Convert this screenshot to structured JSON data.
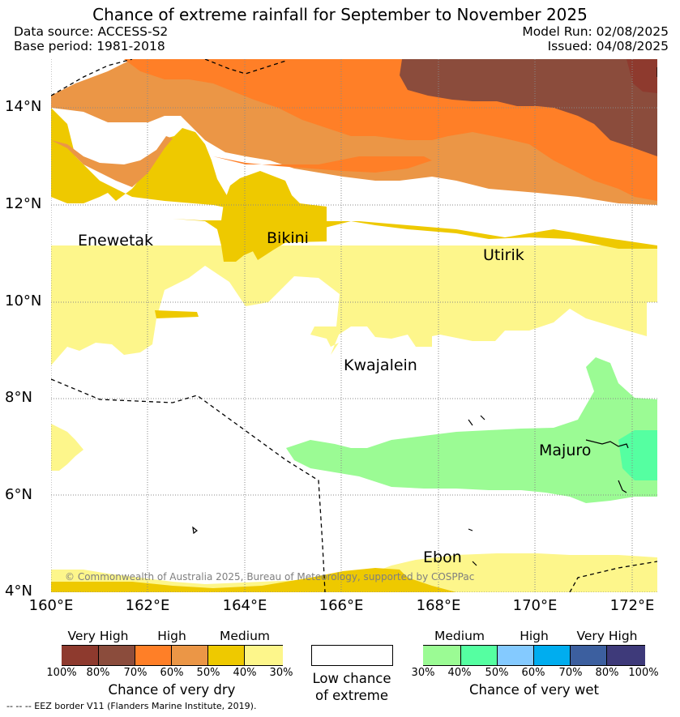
{
  "title": "Chance of extreme rainfall for September to November 2025",
  "header": {
    "data_source": "Data source: ACCESS-S2",
    "base_period": "Base period: 1981-2018",
    "model_run": "Model Run: 02/08/2025",
    "issued": "Issued: 04/08/2025"
  },
  "map": {
    "lat_labels": [
      "14°N",
      "12°N",
      "10°N",
      "8°N",
      "6°N",
      "4°N"
    ],
    "lon_labels": [
      "160°E",
      "162°E",
      "164°E",
      "166°E",
      "168°E",
      "170°E",
      "172°E"
    ],
    "places": {
      "enewetak": "Enewetak",
      "bikini": "Bikini",
      "utirik": "Utirik",
      "kwajalein": "Kwajalein",
      "majuro": "Majuro",
      "ebon": "Ebon"
    },
    "copyright": "© Commonwealth of Australia 2025, Bureau of Meteorology, supported by COSPPac"
  },
  "colors": {
    "dry_very_high_1": "#8e3a2e",
    "dry_very_high_2": "#8b4c3c",
    "dry_high_1": "#ff7f27",
    "dry_high_2": "#eb9646",
    "dry_medium_1": "#eec900",
    "dry_medium_2": "#fdf68b",
    "wet_medium_1": "#9bfb94",
    "wet_medium_2": "#55ffa1",
    "wet_high_1": "#84caff",
    "wet_high_2": "#00adef",
    "wet_very_high_1": "#3c5f9f",
    "wet_very_high_2": "#3e3a7a",
    "low_chance": "#ffffff"
  },
  "legend": {
    "dry": {
      "categories": [
        "Very High",
        "High",
        "Medium"
      ],
      "ticks": [
        "100%",
        "80%",
        "70%",
        "60%",
        "50%",
        "40%",
        "30%"
      ],
      "title": "Chance of very dry"
    },
    "low": {
      "line1": "Low chance",
      "line2": "of extreme"
    },
    "wet": {
      "categories": [
        "Medium",
        "High",
        "Very High"
      ],
      "ticks": [
        "30%",
        "40%",
        "50%",
        "60%",
        "70%",
        "80%",
        "100%"
      ],
      "title": "Chance of very wet"
    }
  },
  "footnote": "--  --  -- EEZ border V11 (Flanders Marine Institute, 2019)."
}
